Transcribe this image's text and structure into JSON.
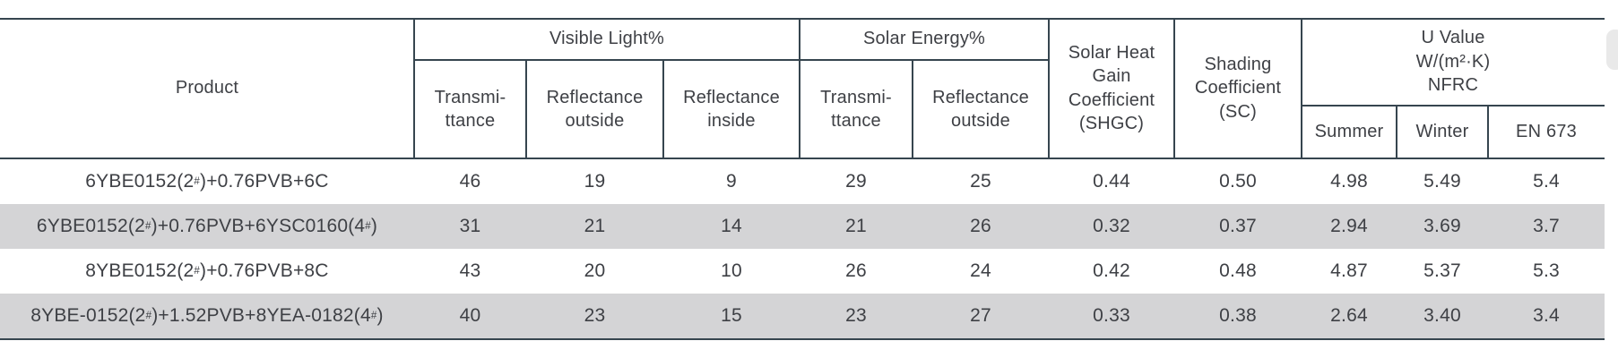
{
  "theme": {
    "line_color": "#36454f",
    "text_color": "#3e4045",
    "shaded_row_color": "#d4d4d6",
    "scrollbar_color": "#e9e9e9"
  },
  "header": {
    "product": "Product",
    "visible_light": {
      "label": "Visible Light%",
      "sub": [
        "Transmi-\nttance",
        "Reflectance\noutside",
        "Reflectance\ninside"
      ]
    },
    "solar_energy": {
      "label": "Solar Energy%",
      "sub": [
        "Transmi-\nttance",
        "Reflectance\noutside"
      ]
    },
    "shgc": "Solar Heat\nGain\nCoefficient\n(SHGC)",
    "sc": "Shading\nCoefficient\n(SC)",
    "u_value": {
      "label": "U Value\nW/(m²·K)\nNFRC",
      "sub": [
        "Summer",
        "Winter",
        "EN 673"
      ]
    }
  },
  "rows": [
    {
      "product": "6YBE0152(2#)+0.76PVB+6C",
      "values": [
        "46",
        "19",
        "9",
        "29",
        "25",
        "0.44",
        "0.50",
        "4.98",
        "5.49",
        "5.4"
      ],
      "shaded": false
    },
    {
      "product": "6YBE0152(2#)+0.76PVB+6YSC0160(4#)",
      "values": [
        "31",
        "21",
        "14",
        "21",
        "26",
        "0.32",
        "0.37",
        "2.94",
        "3.69",
        "3.7"
      ],
      "shaded": true
    },
    {
      "product": "8YBE0152(2#)+0.76PVB+8C",
      "values": [
        "43",
        "20",
        "10",
        "26",
        "24",
        "0.42",
        "0.48",
        "4.87",
        "5.37",
        "5.3"
      ],
      "shaded": false
    },
    {
      "product": "8YBE-0152(2#)+1.52PVB+8YEA-0182(4#)",
      "values": [
        "40",
        "23",
        "15",
        "23",
        "27",
        "0.33",
        "0.38",
        "2.64",
        "3.40",
        "3.4"
      ],
      "shaded": true
    }
  ]
}
